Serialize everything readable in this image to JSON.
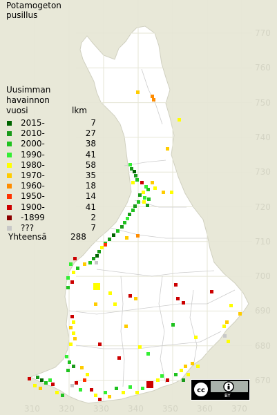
{
  "title": [
    "Potamogeton",
    "pusillus"
  ],
  "legend": {
    "heading": [
      "Uusimman",
      "havainnon",
      "vuosi"
    ],
    "count_header": "lkm",
    "rows": [
      {
        "label": "2015-",
        "count": "7",
        "color": "#006400"
      },
      {
        "label": "2010-",
        "count": "27",
        "color": "#1a9a1a"
      },
      {
        "label": "2000-",
        "count": "38",
        "color": "#1fc21f"
      },
      {
        "label": "1990-",
        "count": "41",
        "color": "#33ee33"
      },
      {
        "label": "1980-",
        "count": "58",
        "color": "#ffff00"
      },
      {
        "label": "1970-",
        "count": "35",
        "color": "#ffcc00"
      },
      {
        "label": "1960-",
        "count": "18",
        "color": "#ff8c00"
      },
      {
        "label": "1950-",
        "count": "14",
        "color": "#ff3300"
      },
      {
        "label": "1900-",
        "count": "41",
        "color": "#cc0000"
      },
      {
        "label": "-1899",
        "count": "2",
        "color": "#8b0000"
      },
      {
        "label": "???",
        "count": "7",
        "color": "#c8c8c8"
      }
    ],
    "total_label": "Yhteensä",
    "total": "288"
  },
  "axes": {
    "y_ticks": [
      "770",
      "760",
      "750",
      "740",
      "730",
      "720",
      "710",
      "700",
      "690",
      "680",
      "670"
    ],
    "x_ticks": [
      "310",
      "320",
      "330",
      "340",
      "350",
      "360",
      "370"
    ]
  },
  "colors": {
    "background": "#e8e8d8",
    "land": "#ffffff",
    "grid": "#e4e4d4",
    "borders": "#c8c8c8"
  },
  "license_badge": {
    "icons": [
      "cc-icon",
      "attribution-icon"
    ],
    "text": "BY"
  }
}
